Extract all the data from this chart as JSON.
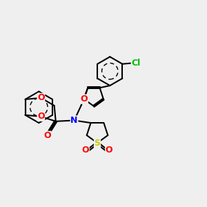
{
  "bg_color": "#efefef",
  "bond_color": "#000000",
  "bond_width": 1.5,
  "atom_colors": {
    "O": "#ff0000",
    "N": "#0000ff",
    "S": "#cccc00",
    "Cl": "#00bb00",
    "C": "#000000"
  },
  "font_size": 9
}
